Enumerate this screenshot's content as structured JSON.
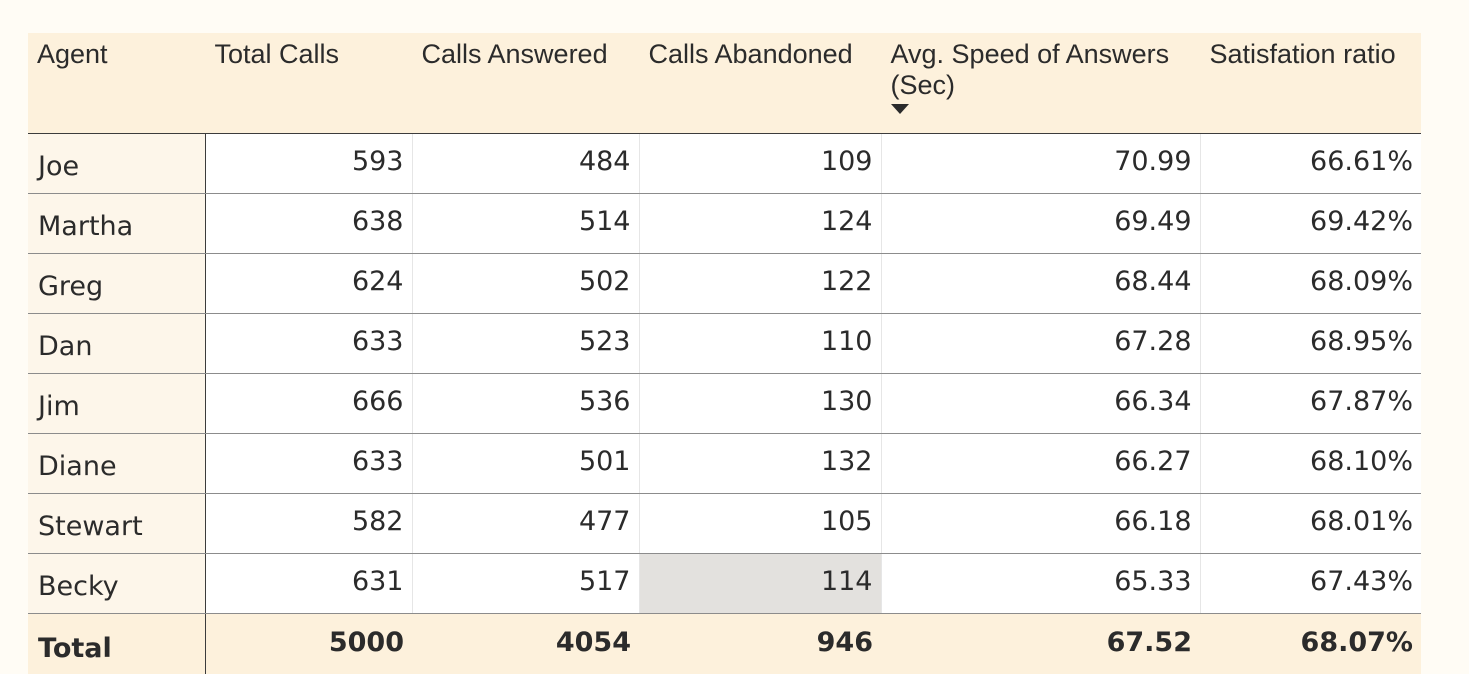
{
  "table": {
    "columns": [
      {
        "label": "Agent"
      },
      {
        "label": "Total Calls"
      },
      {
        "label": "Calls Answered"
      },
      {
        "label": "Calls Abandoned"
      },
      {
        "label": "Avg. Speed of Answers (Sec)",
        "sorted": "descending"
      },
      {
        "label": "Satisfation ratio"
      }
    ],
    "rows": [
      {
        "agent": "Joe",
        "total_calls": "593",
        "calls_answered": "484",
        "calls_abandoned": "109",
        "avg_speed": "70.99",
        "satisfaction": "66.61%"
      },
      {
        "agent": "Martha",
        "total_calls": "638",
        "calls_answered": "514",
        "calls_abandoned": "124",
        "avg_speed": "69.49",
        "satisfaction": "69.42%"
      },
      {
        "agent": "Greg",
        "total_calls": "624",
        "calls_answered": "502",
        "calls_abandoned": "122",
        "avg_speed": "68.44",
        "satisfaction": "68.09%"
      },
      {
        "agent": "Dan",
        "total_calls": "633",
        "calls_answered": "523",
        "calls_abandoned": "110",
        "avg_speed": "67.28",
        "satisfaction": "68.95%"
      },
      {
        "agent": "Jim",
        "total_calls": "666",
        "calls_answered": "536",
        "calls_abandoned": "130",
        "avg_speed": "66.34",
        "satisfaction": "67.87%"
      },
      {
        "agent": "Diane",
        "total_calls": "633",
        "calls_answered": "501",
        "calls_abandoned": "132",
        "avg_speed": "66.27",
        "satisfaction": "68.10%"
      },
      {
        "agent": "Stewart",
        "total_calls": "582",
        "calls_answered": "477",
        "calls_abandoned": "105",
        "avg_speed": "66.18",
        "satisfaction": "68.01%"
      },
      {
        "agent": "Becky",
        "total_calls": "631",
        "calls_answered": "517",
        "calls_abandoned": "114",
        "avg_speed": "65.33",
        "satisfaction": "67.43%"
      }
    ],
    "total": {
      "agent": "Total",
      "total_calls": "5000",
      "calls_answered": "4054",
      "calls_abandoned": "946",
      "avg_speed": "67.52",
      "satisfaction": "68.07%"
    },
    "highlighted_cell": {
      "row": 7,
      "column": "calls_abandoned"
    }
  },
  "colors": {
    "header_bg": "#fdf1dc",
    "agent_col_bg": "#fdf6ea",
    "cell_bg": "#ffffff",
    "highlight_bg": "#e3e1de",
    "page_bg": "#fffcf5"
  },
  "icons": {
    "sort_indicator": "sort-descending-icon"
  }
}
